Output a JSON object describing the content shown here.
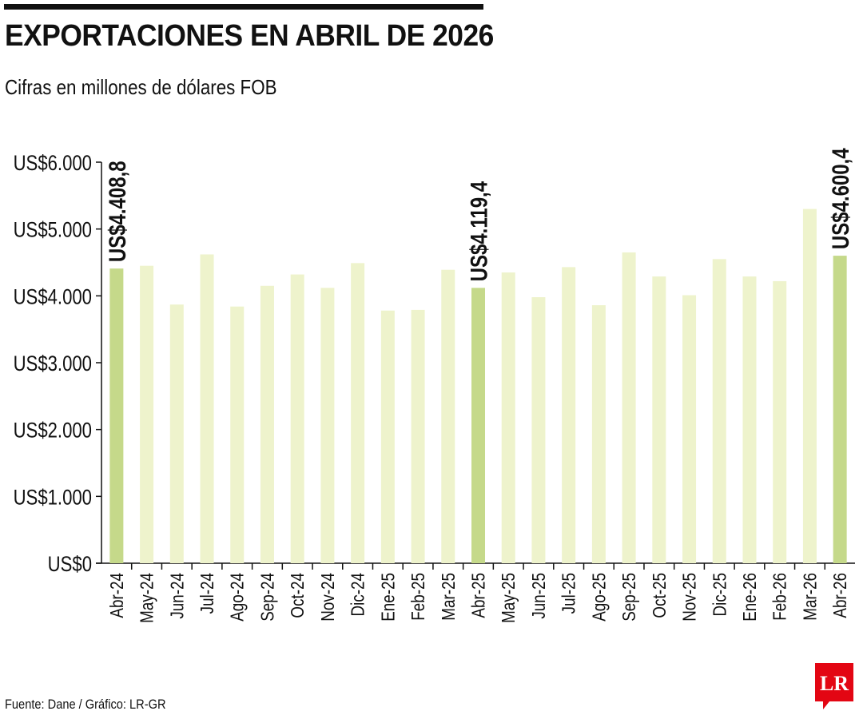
{
  "header": {
    "title": "EXPORTACIONES EN ABRIL DE 2026",
    "subtitle": "Cifras en millones de dólares FOB"
  },
  "footer": {
    "source": "Fuente: Dane / Gráfico: LR-GR",
    "logo_text": "LR"
  },
  "colors": {
    "highlight_bar": "#c5d98a",
    "bar": "#eef3cc",
    "axis": "#111111",
    "logo": "#e30613"
  },
  "chart_data": {
    "type": "bar",
    "title": "EXPORTACIONES EN ABRIL DE 2026",
    "subtitle": "Cifras en millones de dólares FOB",
    "xlabel": "",
    "ylabel": "",
    "ylim": [
      0,
      6000
    ],
    "yticks": [
      0,
      1000,
      2000,
      3000,
      4000,
      5000,
      6000
    ],
    "ytick_labels": [
      "US$0",
      "US$1.000",
      "US$2.000",
      "US$3.000",
      "US$4.000",
      "US$5.000",
      "US$6.000"
    ],
    "grid": false,
    "categories": [
      "Abr-24",
      "May-24",
      "Jun-24",
      "Jul-24",
      "Ago-24",
      "Sep-24",
      "Oct-24",
      "Nov-24",
      "Dic-24",
      "Ene-25",
      "Feb-25",
      "Mar-25",
      "Abr-25",
      "May-25",
      "Jun-25",
      "Jul-25",
      "Ago-25",
      "Sep-25",
      "Oct-25",
      "Nov-25",
      "Dic-25",
      "Ene-26",
      "Feb-26",
      "Mar-26",
      "Abr-26"
    ],
    "values": [
      4408.8,
      4450,
      3870,
      4620,
      3840,
      4150,
      4320,
      4120,
      4490,
      3780,
      3790,
      4390,
      4119.4,
      4350,
      3980,
      4430,
      3860,
      4650,
      4290,
      4010,
      4550,
      4290,
      4220,
      5300,
      4600.4
    ],
    "highlighted": [
      "Abr-24",
      "Abr-25",
      "Abr-26"
    ],
    "data_labels": [
      {
        "category": "Abr-24",
        "text": "US$4.408,8"
      },
      {
        "category": "Abr-25",
        "text": "US$4.119,4"
      },
      {
        "category": "Abr-26",
        "text": "US$4.600,4"
      }
    ]
  }
}
